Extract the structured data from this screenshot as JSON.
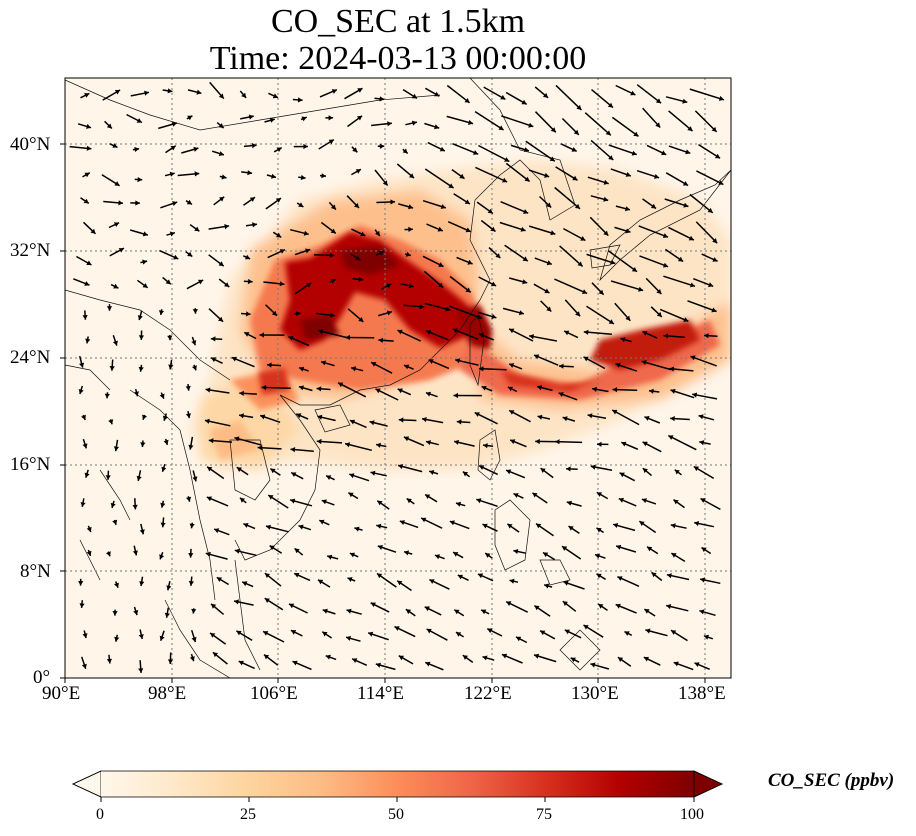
{
  "title": {
    "line1": "CO_SEC at 1.5km",
    "line2": "Time: 2024-03-13 00:00:00"
  },
  "map": {
    "variable": "CO_SEC",
    "level": "1.5km",
    "lon_range": [
      90,
      140
    ],
    "lat_range": [
      0,
      45
    ],
    "lon_ticks": [
      "90°E",
      "98°E",
      "106°E",
      "114°E",
      "122°E",
      "130°E",
      "138°E"
    ],
    "lat_ticks": [
      "0°",
      "8°N",
      "16°N",
      "24°N",
      "32°N",
      "40°N"
    ],
    "gridlines": true,
    "wind_vectors": true
  },
  "colorbar": {
    "label": "CO_SEC (ppbv)",
    "min": 0,
    "max": 100,
    "ticks": [
      "0",
      "25",
      "50",
      "75",
      "100"
    ],
    "extend": "both",
    "colormap": "OrRd",
    "colors": [
      "#fff7ec",
      "#fee8c8",
      "#fdd49e",
      "#fdbb84",
      "#fc8d59",
      "#ef6548",
      "#d7301f",
      "#b30000",
      "#7f0000"
    ]
  }
}
